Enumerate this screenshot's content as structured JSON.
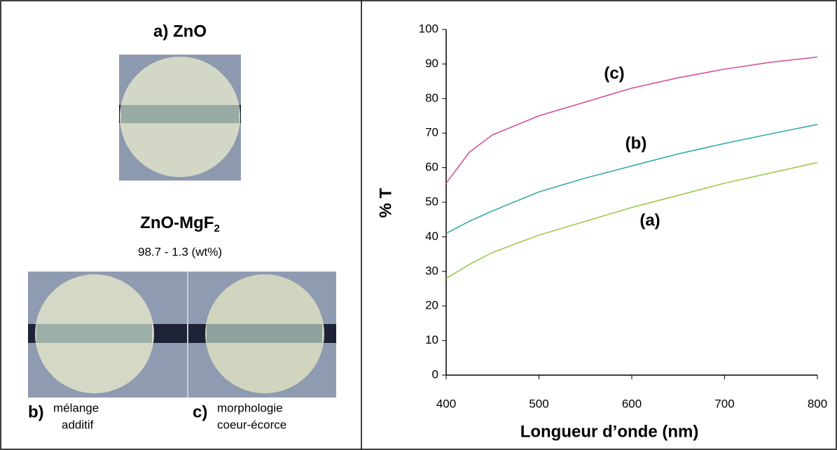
{
  "panel": {
    "top_label": "a)  ZnO",
    "composite_main": "ZnO-MgF",
    "composite_sub": "2",
    "composition": "98.7 - 1.3 (wt%)",
    "caption_b_letter": "b)",
    "caption_b_line1": "mélange",
    "caption_b_line2": "additif",
    "caption_c_letter": "c)",
    "caption_c_line1": "morphologie",
    "caption_c_line2": "coeur-écorce"
  },
  "chart_data": {
    "type": "line",
    "x_label": "Longueur d’onde (nm)",
    "y_label": "% T",
    "x": [
      400,
      425,
      450,
      500,
      550,
      600,
      650,
      700,
      750,
      800
    ],
    "series": [
      {
        "name": "(a)",
        "color": "#92c83e",
        "values": [
          28,
          32,
          35.5,
          40.5,
          44.5,
          48.5,
          52,
          55.5,
          58.5,
          61.5
        ]
      },
      {
        "name": "(b)",
        "color": "#2aa6a8",
        "values": [
          41,
          44.5,
          47.5,
          53,
          57,
          60.5,
          64,
          67,
          69.8,
          72.5
        ]
      },
      {
        "name": "(c)",
        "color": "#d0489a",
        "values": [
          55.5,
          64.5,
          69.5,
          75,
          79,
          83,
          86,
          88.5,
          90.5,
          92
        ]
      }
    ],
    "xlim": [
      400,
      800
    ],
    "xticks": [
      400,
      500,
      600,
      700,
      800
    ],
    "ylim": [
      0,
      100
    ],
    "yticks": [
      0,
      10,
      20,
      30,
      40,
      50,
      60,
      70,
      80,
      90,
      100
    ],
    "grid": false
  }
}
